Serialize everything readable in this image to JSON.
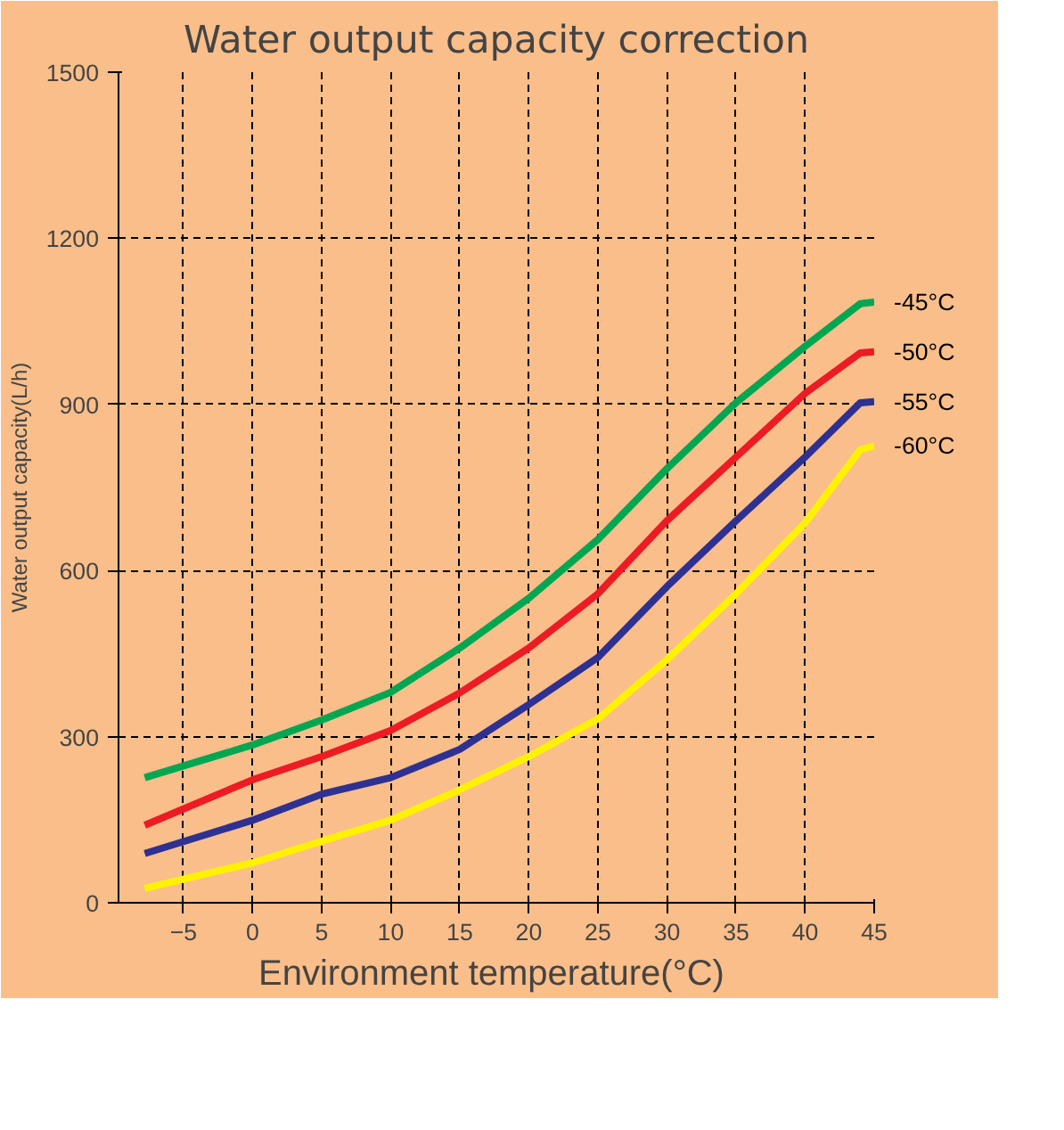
{
  "chart_data": {
    "type": "line",
    "title": "Water output capacity correction",
    "xlabel": "Environment  temperature(°C)",
    "ylabel": "Water output capacity(L/h)",
    "x": [
      -7.8,
      0,
      5,
      10,
      15,
      20,
      25,
      30,
      35,
      40,
      44,
      45
    ],
    "series": [
      {
        "name": "-45°C",
        "color": "#00a651",
        "values": [
          226,
          285,
          330,
          380,
          460,
          550,
          656,
          784,
          903,
          1005,
          1082,
          1085
        ]
      },
      {
        "name": "-50°C",
        "color": "#ed1c24",
        "values": [
          140,
          222,
          264,
          311,
          379,
          460,
          558,
          690,
          805,
          920,
          993,
          995
        ]
      },
      {
        "name": "-55°C",
        "color": "#2e3192",
        "values": [
          89,
          149,
          196,
          226,
          277,
          358,
          443,
          571,
          690,
          805,
          903,
          905
        ]
      },
      {
        "name": "-60°C",
        "color": "#fff200",
        "values": [
          26,
          72,
          111,
          149,
          204,
          264,
          332,
          439,
          558,
          686,
          818,
          825
        ]
      }
    ],
    "xlim": [
      -9.7,
      45
    ],
    "ylim": [
      0,
      1500
    ],
    "xticks": [
      -5,
      0,
      5,
      10,
      15,
      20,
      25,
      30,
      35,
      40,
      45
    ],
    "yticks": [
      0,
      300,
      600,
      900,
      1200,
      1500
    ],
    "grid": true,
    "marker": "none",
    "line_style": "solid"
  }
}
